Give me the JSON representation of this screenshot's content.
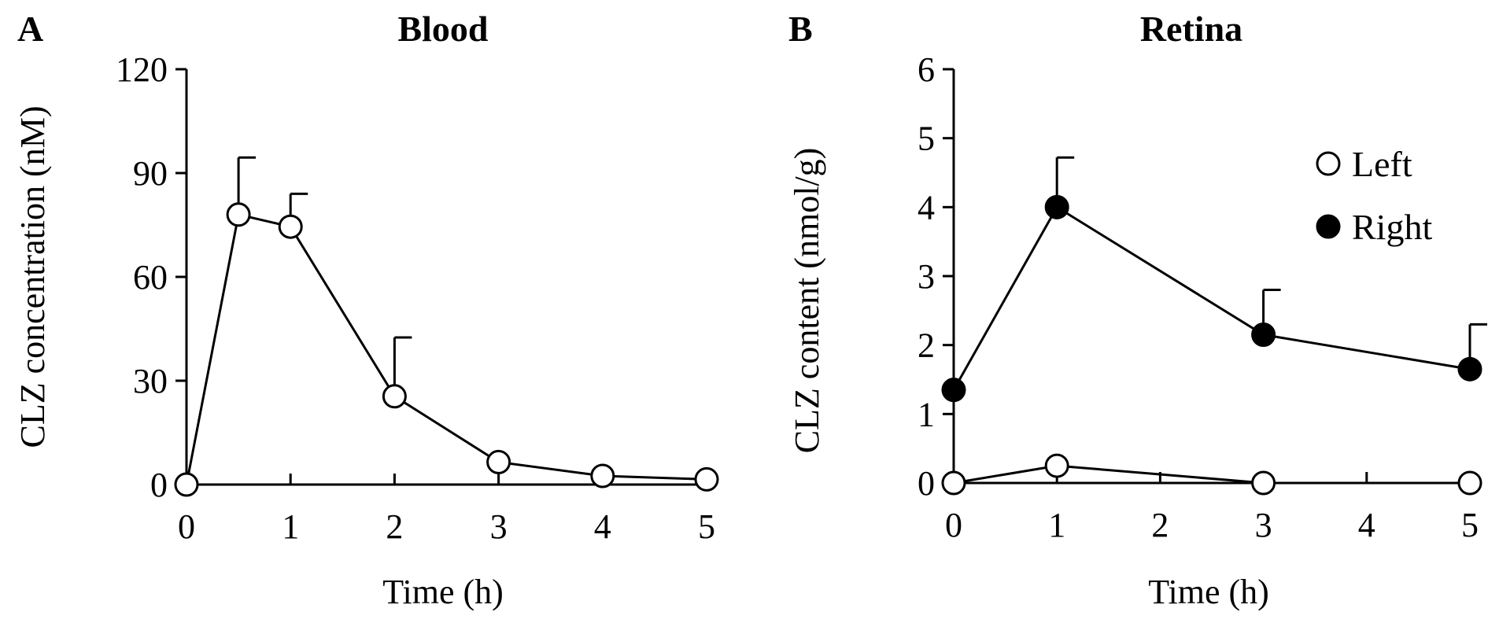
{
  "chart_data": [
    {
      "type": "line",
      "panel": "A",
      "title": "Blood",
      "xlabel": "Time (h)",
      "ylabel": "CLZ concentration (nM)",
      "xlim": [
        0,
        5
      ],
      "ylim": [
        0,
        120
      ],
      "xticks": [
        0,
        1,
        2,
        3,
        4,
        5
      ],
      "yticks": [
        0,
        30,
        60,
        90,
        120
      ],
      "grid": false,
      "legend": null,
      "series": [
        {
          "name": "Blood",
          "marker": "open-circle",
          "x": [
            0,
            0.5,
            1,
            2,
            3,
            4,
            5
          ],
          "y": [
            0,
            78,
            74.5,
            25.5,
            6.5,
            2.5,
            1.5
          ],
          "err": [
            0,
            16.5,
            9.5,
            17,
            0,
            0,
            0
          ]
        }
      ]
    },
    {
      "type": "line",
      "panel": "B",
      "title": "Retina",
      "xlabel": "Time (h)",
      "ylabel": "CLZ content (nmol/g)",
      "xlim": [
        0,
        5
      ],
      "ylim": [
        0,
        6
      ],
      "xticks": [
        0,
        1,
        2,
        3,
        4,
        5
      ],
      "yticks": [
        0,
        1,
        2,
        3,
        4,
        5,
        6
      ],
      "grid": false,
      "legend": "top-right",
      "series": [
        {
          "name": "Left",
          "marker": "open-circle",
          "x": [
            0,
            1,
            3,
            5
          ],
          "y": [
            0,
            0.25,
            0,
            0
          ],
          "err": [
            0,
            0,
            0,
            0
          ]
        },
        {
          "name": "Right",
          "marker": "filled-circle",
          "x": [
            0,
            1,
            3,
            5
          ],
          "y": [
            1.35,
            4.0,
            2.15,
            1.65
          ],
          "err": [
            0,
            0.72,
            0.65,
            0.65
          ]
        }
      ]
    }
  ]
}
